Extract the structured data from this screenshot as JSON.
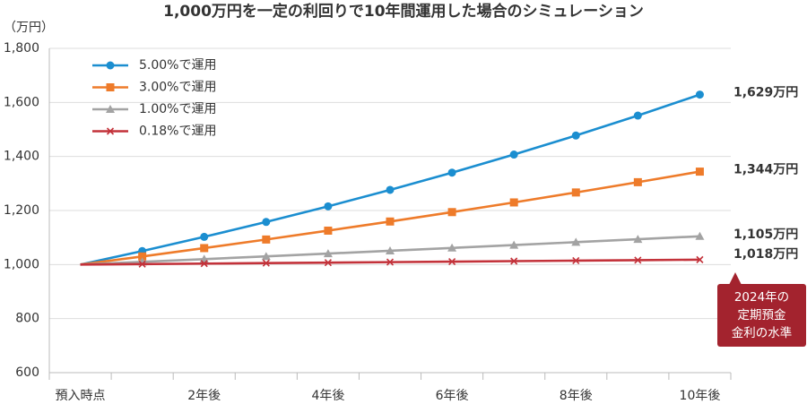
{
  "chart_data": {
    "type": "line",
    "title": "1,000万円を一定の利回りで10年間運用した場合のシミュレーション",
    "y_label": "（万円）",
    "categories": [
      "預入時点",
      null,
      "2年後",
      null,
      "4年後",
      null,
      "6年後",
      null,
      "8年後",
      null,
      "10年後"
    ],
    "ylim": [
      600,
      1800
    ],
    "yticks": [
      600,
      800,
      {
        "value": 1000,
        "label": "1,000"
      },
      {
        "value": 1200,
        "label": "1,200"
      },
      {
        "value": 1400,
        "label": "1,400"
      },
      {
        "value": 1600,
        "label": "1,600"
      },
      {
        "value": 1800,
        "label": "1,800"
      }
    ],
    "grid": true,
    "legend": "top-left",
    "series": [
      {
        "name": "5.00%で運用",
        "color": "#1b8ed0",
        "marker": "circle",
        "values": [
          1000,
          1050,
          1102.5,
          1157.6,
          1215.5,
          1276.3,
          1340.1,
          1407.1,
          1477.5,
          1551.3,
          1628.9
        ],
        "value_labels": [
          null,
          null,
          null,
          null,
          null,
          null,
          null,
          null,
          null,
          null,
          "1,629万円"
        ]
      },
      {
        "name": "3.00%で運用",
        "color": "#ee7b2a",
        "marker": "square",
        "values": [
          1000,
          1030,
          1060.9,
          1092.7,
          1125.5,
          1159.3,
          1194.1,
          1229.9,
          1266.8,
          1304.8,
          1343.9
        ],
        "value_labels": [
          null,
          null,
          null,
          null,
          null,
          null,
          null,
          null,
          null,
          null,
          "1,344万円"
        ]
      },
      {
        "name": "1.00%で運用",
        "color": "#a3a3a3",
        "marker": "triangle",
        "values": [
          1000,
          1010,
          1020.1,
          1030.3,
          1040.6,
          1051.0,
          1061.5,
          1072.1,
          1082.9,
          1093.7,
          1104.6
        ],
        "value_labels": [
          null,
          null,
          null,
          null,
          null,
          null,
          null,
          null,
          null,
          null,
          "1,105万円"
        ]
      },
      {
        "name": "0.18%で運用",
        "color": "#c3323a",
        "marker": "x",
        "values": [
          1000,
          1001.8,
          1003.6,
          1005.4,
          1007.2,
          1009.0,
          1010.8,
          1012.7,
          1014.5,
          1016.3,
          1018.1
        ],
        "value_labels": [
          null,
          null,
          null,
          null,
          null,
          null,
          null,
          null,
          null,
          null,
          "1,018万円"
        ]
      }
    ],
    "annotation": {
      "lines": [
        "2024年の",
        "定期預金",
        "金利の水準"
      ],
      "color": "#a3232e"
    }
  }
}
